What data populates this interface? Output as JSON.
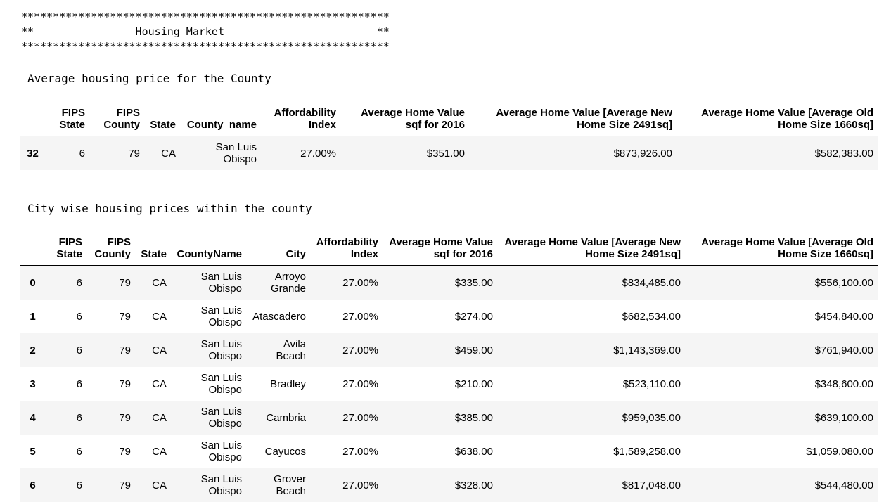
{
  "banner": {
    "top_line": "**********************************************************",
    "title_line": "**                Housing Market                        **",
    "bottom_line": "**********************************************************"
  },
  "county_section": {
    "caption": "Average housing price for the County",
    "columns": [
      "",
      "FIPS State",
      "FIPS County",
      "State",
      "County_name",
      "Affordability Index",
      "Average Home Value sqf for 2016",
      "Average Home Value [Average New Home Size 2491sq]",
      "Average Home Value [Average Old Home Size 1660sq]"
    ],
    "rows": [
      [
        "32",
        "6",
        "79",
        "CA",
        "San Luis Obispo",
        "27.00%",
        "$351.00",
        "$873,926.00",
        "$582,383.00"
      ]
    ]
  },
  "city_section": {
    "caption": "City wise housing prices within the county",
    "columns": [
      "",
      "FIPS State",
      "FIPS County",
      "State",
      "CountyName",
      "City",
      "Affordability Index",
      "Average Home Value sqf for 2016",
      "Average Home Value [Average New Home Size 2491sq]",
      "Average Home Value [Average Old Home Size 1660sq]"
    ],
    "rows": [
      [
        "0",
        "6",
        "79",
        "CA",
        "San Luis Obispo",
        "Arroyo Grande",
        "27.00%",
        "$335.00",
        "$834,485.00",
        "$556,100.00"
      ],
      [
        "1",
        "6",
        "79",
        "CA",
        "San Luis Obispo",
        "Atascadero",
        "27.00%",
        "$274.00",
        "$682,534.00",
        "$454,840.00"
      ],
      [
        "2",
        "6",
        "79",
        "CA",
        "San Luis Obispo",
        "Avila Beach",
        "27.00%",
        "$459.00",
        "$1,143,369.00",
        "$761,940.00"
      ],
      [
        "3",
        "6",
        "79",
        "CA",
        "San Luis Obispo",
        "Bradley",
        "27.00%",
        "$210.00",
        "$523,110.00",
        "$348,600.00"
      ],
      [
        "4",
        "6",
        "79",
        "CA",
        "San Luis Obispo",
        "Cambria",
        "27.00%",
        "$385.00",
        "$959,035.00",
        "$639,100.00"
      ],
      [
        "5",
        "6",
        "79",
        "CA",
        "San Luis Obispo",
        "Cayucos",
        "27.00%",
        "$638.00",
        "$1,589,258.00",
        "$1,059,080.00"
      ],
      [
        "6",
        "6",
        "79",
        "CA",
        "San Luis Obispo",
        "Grover Beach",
        "27.00%",
        "$328.00",
        "$817,048.00",
        "$544,480.00"
      ]
    ]
  }
}
